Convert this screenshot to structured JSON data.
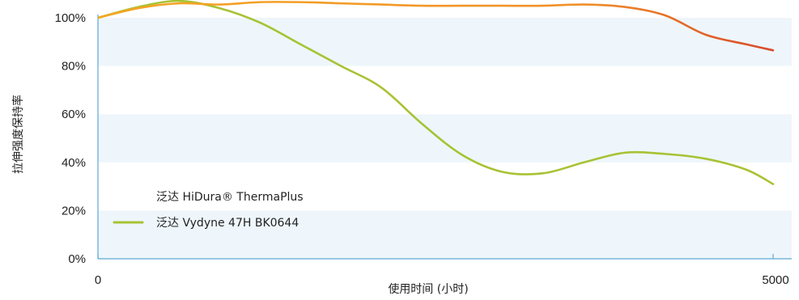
{
  "chart_data": {
    "type": "line",
    "title": "",
    "xlabel": "使用时间 (小时)",
    "ylabel": "拉伸强度保持率",
    "xlim": [
      0,
      5000
    ],
    "ylim": [
      0,
      100
    ],
    "x_ticks": [
      {
        "value": 0,
        "label": "0"
      },
      {
        "value": 5000,
        "label": "5000"
      }
    ],
    "y_ticks": [
      {
        "value": 0,
        "label": "0%"
      },
      {
        "value": 20,
        "label": "20%"
      },
      {
        "value": 40,
        "label": "40%"
      },
      {
        "value": 60,
        "label": "60%"
      },
      {
        "value": 80,
        "label": "80%"
      },
      {
        "value": 100,
        "label": "100%"
      }
    ],
    "grid": "alternating horizontal bands",
    "legend_position": "bottom-left",
    "series": [
      {
        "name": "泛达 HiDura® ThermaPlus",
        "color_start": "#f5a623",
        "color_end": "#d94a2b",
        "x": [
          0,
          300,
          600,
          900,
          1200,
          1500,
          1800,
          2100,
          2400,
          2700,
          3000,
          3300,
          3600,
          3900,
          4200,
          4500,
          4800,
          5000
        ],
        "y": [
          100,
          104,
          106,
          105.5,
          106.5,
          106.5,
          106,
          105.5,
          105,
          105,
          105,
          105,
          105.5,
          104.5,
          101,
          93,
          89,
          86.5
        ]
      },
      {
        "name": "泛达 Vydyne 47H BK0644",
        "color": "#a8c233",
        "x": [
          0,
          300,
          600,
          900,
          1200,
          1500,
          1800,
          2100,
          2400,
          2700,
          3000,
          3300,
          3600,
          3900,
          4200,
          4500,
          4800,
          5000
        ],
        "y": [
          100,
          104.5,
          107,
          104,
          98,
          89,
          80,
          71,
          56,
          43,
          36,
          35.5,
          40,
          44,
          43.5,
          41.5,
          37,
          31
        ]
      }
    ]
  }
}
